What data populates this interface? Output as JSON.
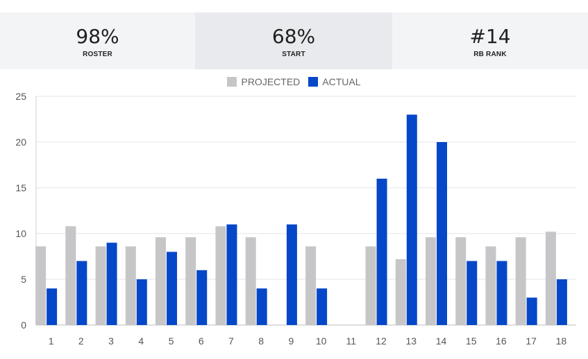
{
  "stats": [
    {
      "value": "98%",
      "label": "ROSTER"
    },
    {
      "value": "68%",
      "label": "START"
    },
    {
      "value": "#14",
      "label": "RB RANK"
    }
  ],
  "legend": {
    "projected": "PROJECTED",
    "actual": "ACTUAL"
  },
  "colors": {
    "projected": "#c6c6c8",
    "actual": "#0547c9",
    "grid": "#e3e3e3"
  },
  "chart_data": {
    "type": "bar",
    "categories": [
      "1",
      "2",
      "3",
      "4",
      "5",
      "6",
      "7",
      "8",
      "9",
      "10",
      "11",
      "12",
      "13",
      "14",
      "15",
      "16",
      "17",
      "18"
    ],
    "series": [
      {
        "name": "PROJECTED",
        "values": [
          8.6,
          10.8,
          8.6,
          8.6,
          9.6,
          9.6,
          10.8,
          9.6,
          null,
          8.6,
          null,
          8.6,
          7.2,
          9.6,
          9.6,
          8.6,
          9.6,
          10.2
        ]
      },
      {
        "name": "ACTUAL",
        "values": [
          4,
          7,
          9,
          5,
          8,
          6,
          11,
          4,
          11,
          4,
          null,
          16,
          23,
          20,
          7,
          7,
          3,
          5
        ]
      }
    ],
    "yticks": [
      0,
      5,
      10,
      15,
      20,
      25
    ],
    "ylim": [
      0,
      25
    ],
    "grid": true,
    "legend_position": "top"
  }
}
